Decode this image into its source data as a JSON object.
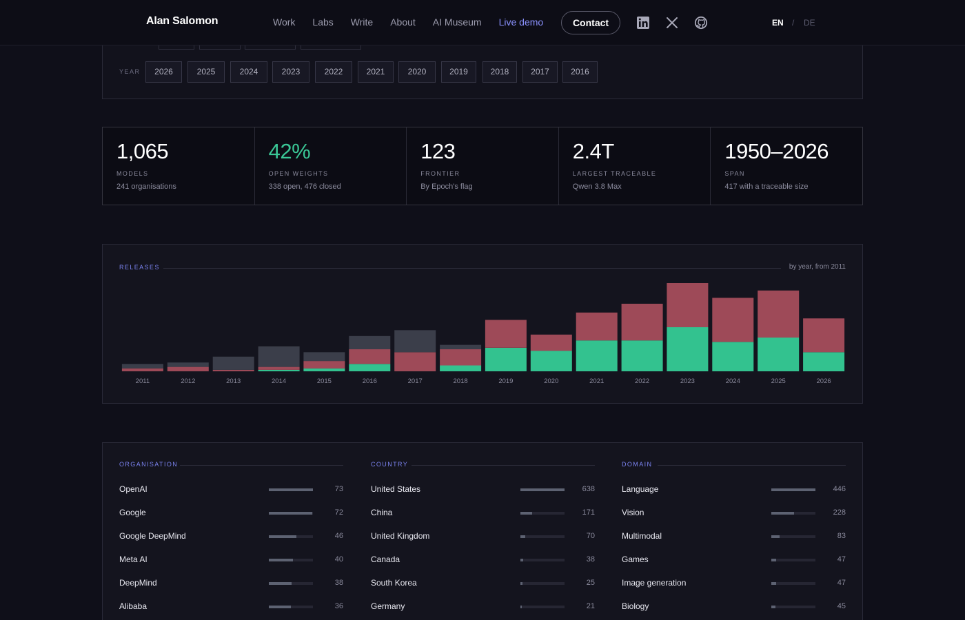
{
  "nav": {
    "brand": "Alan Salomon",
    "links": [
      "Work",
      "Labs",
      "Write",
      "About",
      "AI Museum",
      "Live demo"
    ],
    "contact": "Contact",
    "social_icons": [
      "linkedin-icon",
      "x-icon",
      "github-icon"
    ],
    "lang_en": "EN",
    "lang_sep": "/",
    "lang_de": "DE"
  },
  "filters": {
    "year_label": "YEAR",
    "years": [
      "2026",
      "2025",
      "2024",
      "2023",
      "2022",
      "2021",
      "2020",
      "2019",
      "2018",
      "2017",
      "2016"
    ]
  },
  "stats": [
    {
      "value": "1,065",
      "label": "MODELS",
      "sub": "241 organisations"
    },
    {
      "value": "42%",
      "label": "OPEN WEIGHTS",
      "sub": "338 open, 476 closed"
    },
    {
      "value": "123",
      "label": "FRONTIER",
      "sub": "By Epoch's flag"
    },
    {
      "value": "2.4T",
      "label": "LARGEST TRACEABLE",
      "sub": "Qwen 3.8 Max"
    },
    {
      "value": "1950–2026",
      "label": "SPAN",
      "sub": "417 with a traceable size"
    }
  ],
  "colors": {
    "open": "#33c28f",
    "closed": "#9e4a58",
    "unknown": "#3b3e4a",
    "accent": "#7c84f2"
  },
  "chart": {
    "title": "RELEASES",
    "note": "by year, from 2011"
  },
  "chart_data": {
    "type": "bar",
    "stacked": true,
    "categories": [
      "2011",
      "2012",
      "2013",
      "2014",
      "2015",
      "2016",
      "2017",
      "2018",
      "2019",
      "2020",
      "2021",
      "2022",
      "2023",
      "2024",
      "2025",
      "2026"
    ],
    "series": [
      {
        "key": "open",
        "values": [
          0,
          0,
          0,
          1,
          2,
          5,
          0,
          4,
          16,
          14,
          21,
          21,
          30,
          20,
          23,
          13
        ]
      },
      {
        "key": "closed",
        "values": [
          2,
          3,
          1,
          2,
          5,
          10,
          13,
          11,
          19,
          11,
          19,
          25,
          30,
          30,
          32,
          23
        ]
      },
      {
        "key": "unknown",
        "values": [
          3,
          3,
          9,
          14,
          6,
          9,
          15,
          3,
          0,
          0,
          0,
          0,
          0,
          0,
          0,
          0
        ]
      }
    ],
    "ylim": [
      0,
      60
    ],
    "grid": false,
    "legend": "none"
  },
  "breakdown": [
    {
      "title": "ORGANISATION",
      "max": 73,
      "rows": [
        {
          "name": "OpenAI",
          "count": 73
        },
        {
          "name": "Google",
          "count": 72
        },
        {
          "name": "Google DeepMind",
          "count": 46
        },
        {
          "name": "Meta AI",
          "count": 40
        },
        {
          "name": "DeepMind",
          "count": 38
        },
        {
          "name": "Alibaba",
          "count": 36
        }
      ]
    },
    {
      "title": "COUNTRY",
      "max": 638,
      "rows": [
        {
          "name": "United States",
          "count": 638
        },
        {
          "name": "China",
          "count": 171
        },
        {
          "name": "United Kingdom",
          "count": 70
        },
        {
          "name": "Canada",
          "count": 38
        },
        {
          "name": "South Korea",
          "count": 25
        },
        {
          "name": "Germany",
          "count": 21
        }
      ]
    },
    {
      "title": "DOMAIN",
      "max": 446,
      "rows": [
        {
          "name": "Language",
          "count": 446
        },
        {
          "name": "Vision",
          "count": 228
        },
        {
          "name": "Multimodal",
          "count": 83
        },
        {
          "name": "Games",
          "count": 47
        },
        {
          "name": "Image generation",
          "count": 47
        },
        {
          "name": "Biology",
          "count": 45
        }
      ]
    }
  ]
}
